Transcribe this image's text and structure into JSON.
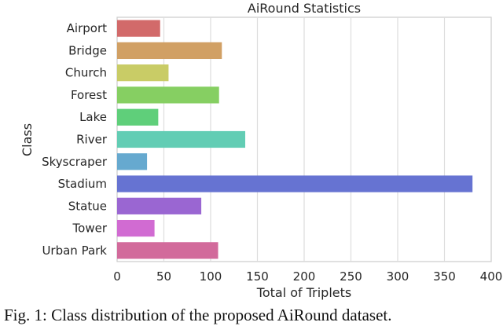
{
  "chart_data": {
    "type": "bar",
    "orientation": "horizontal",
    "title": "AiRound Statistics",
    "xlabel": "Total of Triplets",
    "ylabel": "Class",
    "categories": [
      "Airport",
      "Bridge",
      "Church",
      "Forest",
      "Lake",
      "River",
      "Skyscraper",
      "Stadium",
      "Statue",
      "Tower",
      "Urban Park"
    ],
    "values": [
      46,
      112,
      55,
      109,
      44,
      137,
      32,
      380,
      90,
      40,
      108
    ],
    "colors": [
      "#d26a6a",
      "#d1a064",
      "#c9cc66",
      "#86cf62",
      "#5fcf7a",
      "#62cdb4",
      "#66a9cf",
      "#6673d2",
      "#9a66d2",
      "#d16bd2",
      "#d26a9b"
    ],
    "xlim": [
      0,
      400
    ],
    "xticks": [
      0,
      50,
      100,
      150,
      200,
      250,
      300,
      350,
      400
    ],
    "grid": true
  },
  "caption": "Fig. 1: Class distribution of the proposed AiRound dataset."
}
